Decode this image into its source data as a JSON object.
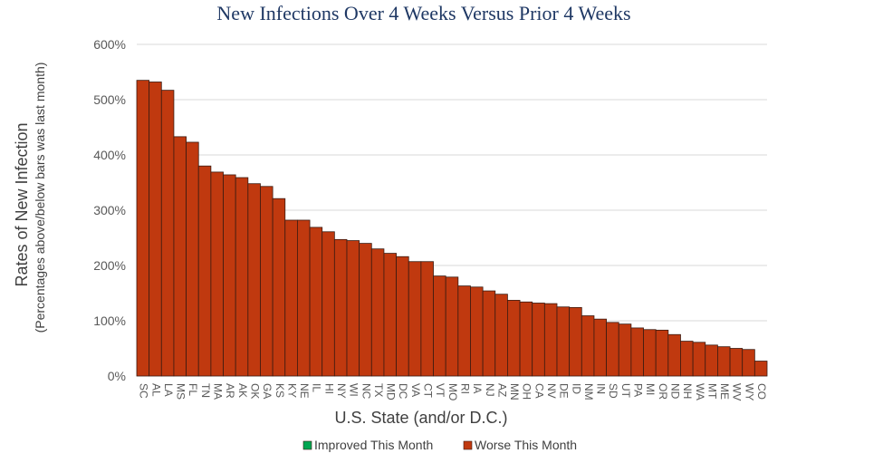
{
  "chart_data": {
    "type": "bar",
    "title": "New Infections Over 4 Weeks Versus Prior 4 Weeks",
    "xlabel": "U.S. State (and/or D.C.)",
    "ylabel": "Rates of New Infection",
    "ylabel_sub": "(Percentages above/below bars was last month)",
    "ylim": [
      0,
      600
    ],
    "yticks": [
      0,
      100,
      200,
      300,
      400,
      500,
      600
    ],
    "ytick_labels": [
      "0%",
      "100%",
      "200%",
      "300%",
      "400%",
      "500%",
      "600%"
    ],
    "grid": true,
    "legend_position": "bottom",
    "colors": {
      "improved": "#00a651",
      "worse": "#c0390f"
    },
    "legend": [
      {
        "name": "Improved This Month",
        "color": "#00a651"
      },
      {
        "name": "Worse This Month",
        "color": "#c0390f"
      }
    ],
    "categories": [
      "SC",
      "AL",
      "LA",
      "MS",
      "FL",
      "TN",
      "MA",
      "AR",
      "AK",
      "OK",
      "GA",
      "KS",
      "KY",
      "NE",
      "IL",
      "HI",
      "NY",
      "WI",
      "NC",
      "TX",
      "MD",
      "DC",
      "VA",
      "CT",
      "VT",
      "MO",
      "RI",
      "IA",
      "NJ",
      "AZ",
      "MN",
      "OH",
      "CA",
      "NV",
      "DE",
      "ID",
      "NM",
      "IN",
      "SD",
      "UT",
      "PA",
      "MI",
      "OR",
      "ND",
      "NH",
      "WA",
      "MT",
      "ME",
      "WV",
      "WY",
      "CO"
    ],
    "series": [
      {
        "name": "Worse This Month",
        "values": [
          535,
          532,
          517,
          433,
          423,
          380,
          369,
          364,
          359,
          348,
          343,
          321,
          282,
          282,
          269,
          261,
          247,
          245,
          240,
          230,
          222,
          216,
          207,
          207,
          181,
          179,
          163,
          161,
          154,
          148,
          137,
          134,
          132,
          131,
          125,
          124,
          109,
          103,
          97,
          94,
          87,
          84,
          83,
          75,
          63,
          61,
          56,
          53,
          50,
          48,
          27
        ]
      }
    ]
  }
}
